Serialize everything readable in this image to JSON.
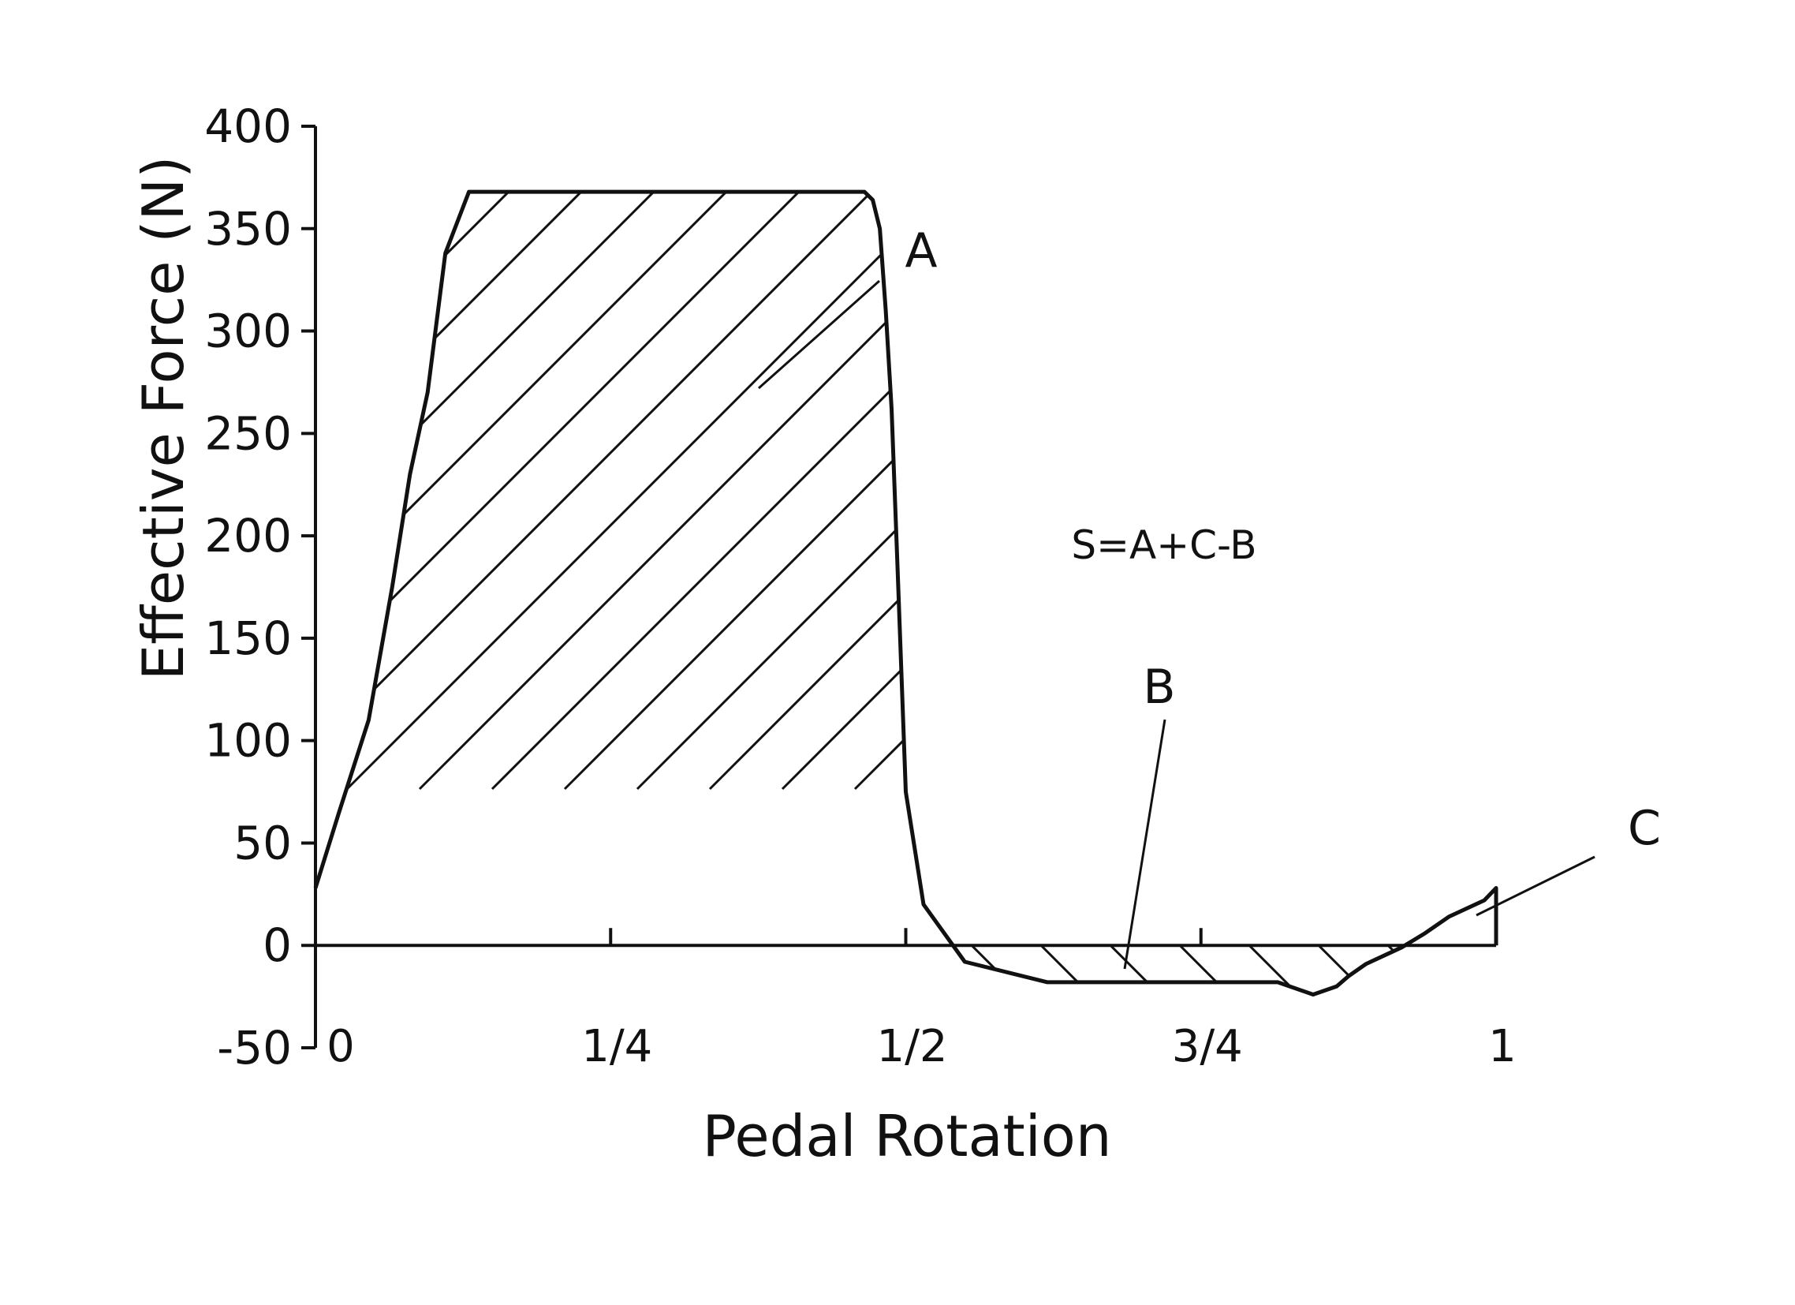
{
  "chart_data": {
    "type": "area",
    "title": "",
    "xlabel": "Pedal Rotation",
    "ylabel": "Effective Force (N)",
    "xlim": [
      0,
      1
    ],
    "ylim": [
      -50,
      400
    ],
    "grid": false,
    "legend": "none",
    "x_ticks": [
      0,
      0.25,
      0.5,
      0.75,
      1
    ],
    "x_tick_labels": [
      "0",
      "1/4",
      "1/2",
      "3/4",
      "1"
    ],
    "y_ticks": [
      -50,
      0,
      50,
      100,
      150,
      200,
      250,
      300,
      350,
      400
    ],
    "y_tick_labels": [
      "-50",
      "0",
      "50",
      "100",
      "150",
      "200",
      "250",
      "300",
      "350",
      "400"
    ],
    "series": [
      {
        "x": [
          0,
          0.02,
          0.045,
          0.065,
          0.08,
          0.095,
          0.11,
          0.13,
          0.155,
          0.465,
          0.472,
          0.478,
          0.483,
          0.488,
          0.493,
          0.5,
          0.515,
          0.55,
          0.62,
          0.7,
          0.79,
          0.815,
          0.845,
          0.865,
          0.875,
          0.89,
          0.905,
          0.92,
          0.94,
          0.96,
          0.99,
          1.0,
          1.0
        ],
        "y": [
          28,
          65,
          110,
          175,
          230,
          270,
          338,
          368,
          368,
          368,
          364,
          350,
          310,
          262,
          185,
          75,
          20,
          -8,
          -18,
          -18,
          -18,
          -18,
          -24,
          -20,
          -15,
          -9,
          -5,
          -1,
          6,
          14,
          22,
          28,
          0
        ]
      }
    ],
    "region_labels": [
      "A",
      "B",
      "C"
    ],
    "annotation": "S=A+C-B"
  },
  "colors": {
    "line": "#111111",
    "background": "#ffffff"
  }
}
